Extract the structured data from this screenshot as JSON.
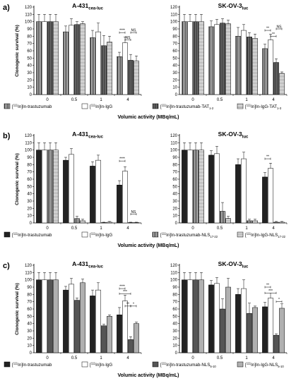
{
  "figure": {
    "panels": [
      {
        "letter": "a)",
        "xlabel": "Volumic activity (MBq/mL)",
        "legend": [
          {
            "pre": "[",
            "sup": "111",
            "mid": "In]In-trastuzumab",
            "sub": "",
            "pattern": "vstripe-dense"
          },
          {
            "pre": "[",
            "sup": "111",
            "mid": "In]In-IgG",
            "sub": "",
            "pattern": "white"
          },
          {
            "pre": "[",
            "sup": "111",
            "mid": "In]In-trastuzumab-TAT",
            "sub": "1-2",
            "pattern": "vstripe"
          },
          {
            "pre": "[",
            "sup": "111",
            "mid": "In]In-IgG-TAT",
            "sub": "1-3",
            "pattern": "hstripe"
          }
        ],
        "charts": [
          {
            "name": "A-431",
            "sub": "cea-luc"
          },
          {
            "name": "SK-OV-3",
            "sub": "luc"
          }
        ]
      },
      {
        "letter": "b)",
        "xlabel": "Volumic activity (MBq/mL)",
        "legend": [
          {
            "pre": "[",
            "sup": "111",
            "mid": "In]In-trastuzumab",
            "sub": "",
            "pattern": "black"
          },
          {
            "pre": "[",
            "sup": "111",
            "mid": "In]In-IgG",
            "sub": "",
            "pattern": "white"
          },
          {
            "pre": "[",
            "sup": "111",
            "mid": "In]In-trastuzumab-NLS",
            "sub": "17-22",
            "pattern": "vstripe-dense"
          },
          {
            "pre": "[",
            "sup": "111",
            "mid": "In]In-IgG-NLS",
            "sub": "17-22",
            "pattern": "hstripe"
          }
        ],
        "charts": [
          {
            "name": "A-431",
            "sub": "cea-luc"
          },
          {
            "name": "SK-OV-3",
            "sub": "luc"
          }
        ]
      },
      {
        "letter": "c)",
        "xlabel": "Volumic activity (MBq/mL)",
        "legend": [
          {
            "pre": "[",
            "sup": "111",
            "mid": "In]In-trastuzumab",
            "sub": "",
            "pattern": "black"
          },
          {
            "pre": "[",
            "sup": "111",
            "mid": "In]In-IgG",
            "sub": "",
            "pattern": "white"
          },
          {
            "pre": "[",
            "sup": "111",
            "mid": "In]In-trastuzumab-NLS",
            "sub": "5-10",
            "pattern": "darkgray"
          },
          {
            "pre": "[",
            "sup": "111",
            "mid": "In]In-IgG-NLS",
            "sub": "5-10",
            "pattern": "lightgray"
          }
        ],
        "charts": [
          {
            "name": "A-431",
            "sub": "cea-luc"
          },
          {
            "name": "SK-OV-3",
            "sub": "luc"
          }
        ]
      }
    ]
  },
  "chart_data": [
    {
      "type": "bar",
      "panel": "a",
      "title": "A-431cea-luc",
      "categories": [
        "0",
        "0.5",
        "1",
        "4"
      ],
      "xlabel": "",
      "ylabel": "Clonogenic survival (%)",
      "ylim": [
        0,
        120
      ],
      "yticks": [
        0,
        10,
        20,
        30,
        40,
        50,
        60,
        70,
        80,
        90,
        100,
        110,
        120
      ],
      "series": [
        {
          "name": "[111In]In-trastuzumab",
          "values": [
            100,
            86,
            78,
            52
          ],
          "errors": [
            10,
            8,
            10,
            6
          ]
        },
        {
          "name": "[111In]In-IgG",
          "values": [
            100,
            95,
            86,
            71
          ],
          "errors": [
            10,
            9,
            12,
            8
          ]
        },
        {
          "name": "[111In]In-trastuzumab-TAT1-2",
          "values": [
            100,
            96,
            67,
            47
          ],
          "errors": [
            10,
            4,
            14,
            8
          ]
        },
        {
          "name": "[111In]In-IgG-TAT1-3",
          "values": [
            100,
            97,
            72,
            46
          ],
          "errors": [
            10,
            3,
            8,
            7
          ]
        }
      ],
      "annotations": [
        {
          "group": 3,
          "from": 0,
          "to": 1,
          "text": "****",
          "y": 85
        },
        {
          "group": 3,
          "from": 1,
          "to": 2,
          "text": "NS",
          "y": 75
        },
        {
          "group": 3,
          "from": 2,
          "to": 3,
          "text": "NS",
          "y": 85
        }
      ]
    },
    {
      "type": "bar",
      "panel": "a",
      "title": "SK-OV-3luc",
      "categories": [
        "0",
        "0.5",
        "1",
        "4"
      ],
      "xlabel": "",
      "ylabel": "",
      "ylim": [
        0,
        120
      ],
      "yticks": [
        0,
        10,
        20,
        30,
        40,
        50,
        60,
        70,
        80,
        90,
        100,
        110,
        120
      ],
      "series": [
        {
          "name": "[111In]In-trastuzumab",
          "values": [
            100,
            93,
            80,
            63
          ],
          "errors": [
            10,
            8,
            12,
            6
          ]
        },
        {
          "name": "[111In]In-IgG",
          "values": [
            100,
            96,
            88,
            75
          ],
          "errors": [
            10,
            7,
            8,
            8
          ]
        },
        {
          "name": "[111In]In-trastuzumab-TAT1-2",
          "values": [
            100,
            98,
            79,
            44
          ],
          "errors": [
            10,
            6,
            6,
            5
          ]
        },
        {
          "name": "[111In]In-IgG-TAT1-3",
          "values": [
            100,
            97,
            77,
            29
          ],
          "errors": [
            10,
            5,
            6,
            2
          ]
        }
      ],
      "annotations": [
        {
          "group": 3,
          "from": 0,
          "to": 1,
          "text": "**",
          "y": 88
        },
        {
          "group": 3,
          "from": 1,
          "to": 2,
          "text": "**",
          "y": 80
        },
        {
          "group": 3,
          "from": 2,
          "to": 3,
          "text": "NS",
          "y": 90
        }
      ]
    },
    {
      "type": "bar",
      "panel": "b",
      "title": "A-431cea-luc",
      "categories": [
        "0",
        "0.5",
        "1",
        "4"
      ],
      "xlabel": "",
      "ylabel": "Clonogenic survival (%)",
      "ylim": [
        0,
        120
      ],
      "yticks": [
        0,
        10,
        20,
        30,
        40,
        50,
        60,
        70,
        80,
        90,
        100,
        110,
        120
      ],
      "series": [
        {
          "name": "[111In]In-trastuzumab",
          "values": [
            100,
            86,
            78,
            52
          ],
          "errors": [
            10,
            4,
            6,
            6
          ]
        },
        {
          "name": "[111In]In-IgG",
          "values": [
            100,
            94,
            86,
            71
          ],
          "errors": [
            10,
            8,
            7,
            6
          ]
        },
        {
          "name": "[111In]In-trastuzumab-NLS17-22",
          "values": [
            100,
            6,
            0.5,
            0.5
          ],
          "errors": [
            10,
            3,
            0.5,
            0.5
          ]
        },
        {
          "name": "[111In]In-IgG-NLS17-22",
          "values": [
            100,
            3,
            1,
            0.5
          ],
          "errors": [
            10,
            2,
            1,
            0.5
          ]
        }
      ],
      "annotations": [
        {
          "group": 3,
          "from": 0,
          "to": 1,
          "text": "****",
          "y": 85
        },
        {
          "group": 3,
          "from": 2,
          "to": 3,
          "text": "NS",
          "y": 12
        }
      ]
    },
    {
      "type": "bar",
      "panel": "b",
      "title": "SK-OV-3luc",
      "categories": [
        "0",
        "0.5",
        "1",
        "4"
      ],
      "xlabel": "",
      "ylabel": "",
      "ylim": [
        0,
        120
      ],
      "yticks": [
        0,
        10,
        20,
        30,
        40,
        50,
        60,
        70,
        80,
        90,
        100,
        110,
        120
      ],
      "series": [
        {
          "name": "[111In]In-trastuzumab",
          "values": [
            100,
            93,
            80,
            63
          ],
          "errors": [
            10,
            6,
            8,
            6
          ]
        },
        {
          "name": "[111In]In-IgG",
          "values": [
            100,
            95,
            88,
            75
          ],
          "errors": [
            10,
            10,
            9,
            7
          ]
        },
        {
          "name": "[111In]In-trastuzumab-NLS17-22",
          "values": [
            100,
            16,
            3,
            1
          ],
          "errors": [
            10,
            12,
            2,
            1
          ]
        },
        {
          "name": "[111In]In-IgG-NLS17-22",
          "values": [
            100,
            6,
            3,
            1
          ],
          "errors": [
            10,
            3,
            2,
            1
          ]
        }
      ],
      "annotations": [
        {
          "group": 3,
          "from": 0,
          "to": 1,
          "text": "**",
          "y": 88
        }
      ]
    },
    {
      "type": "bar",
      "panel": "c",
      "title": "A-431cea-luc",
      "categories": [
        "0",
        "0.5",
        "1",
        "4"
      ],
      "xlabel": "",
      "ylabel": "Clonogenic survival (%)",
      "ylim": [
        0,
        120
      ],
      "yticks": [
        0,
        10,
        20,
        30,
        40,
        50,
        60,
        70,
        80,
        90,
        100,
        110,
        120
      ],
      "series": [
        {
          "name": "[111In]In-trastuzumab",
          "values": [
            100,
            86,
            78,
            52
          ],
          "errors": [
            10,
            5,
            8,
            10
          ]
        },
        {
          "name": "[111In]In-IgG",
          "values": [
            100,
            94,
            86,
            71
          ],
          "errors": [
            10,
            8,
            10,
            8
          ]
        },
        {
          "name": "[111In]In-trastuzumab-NLS5-10",
          "values": [
            100,
            72,
            37,
            18
          ],
          "errors": [
            10,
            3,
            2,
            4
          ]
        },
        {
          "name": "[111In]In-IgG-NLS5-10",
          "values": [
            100,
            96,
            50,
            40
          ],
          "errors": [
            10,
            5,
            2,
            2
          ]
        }
      ],
      "annotations": [
        {
          "group": 3,
          "from": 0,
          "to": 1,
          "text": "****",
          "y": 88
        },
        {
          "group": 3,
          "from": 0,
          "to": 2,
          "text": "***",
          "y": 81
        },
        {
          "group": 3,
          "from": 1,
          "to": 2,
          "text": "**",
          "y": 64
        },
        {
          "group": 3,
          "from": 2,
          "to": 3,
          "text": "*",
          "y": 64
        }
      ]
    },
    {
      "type": "bar",
      "panel": "c",
      "title": "SK-OV-3luc",
      "categories": [
        "0",
        "0.5",
        "1",
        "4"
      ],
      "xlabel": "",
      "ylabel": "",
      "ylim": [
        0,
        120
      ],
      "yticks": [
        0,
        10,
        20,
        30,
        40,
        50,
        60,
        70,
        80,
        90,
        100,
        110,
        120
      ],
      "series": [
        {
          "name": "[111In]In-trastuzumab",
          "values": [
            100,
            93,
            80,
            63
          ],
          "errors": [
            10,
            6,
            8,
            6
          ]
        },
        {
          "name": "[111In]In-IgG",
          "values": [
            100,
            95,
            88,
            75
          ],
          "errors": [
            10,
            8,
            12,
            7
          ]
        },
        {
          "name": "[111In]In-trastuzumab-NLS5-10",
          "values": [
            100,
            60,
            54,
            24
          ],
          "errors": [
            10,
            14,
            14,
            2
          ]
        },
        {
          "name": "[111In]In-IgG-NLS5-10",
          "values": [
            100,
            90,
            62,
            61
          ],
          "errors": [
            10,
            12,
            2,
            6
          ]
        }
      ],
      "annotations": [
        {
          "group": 3,
          "from": 0,
          "to": 1,
          "text": "**",
          "y": 90
        },
        {
          "group": 3,
          "from": 0,
          "to": 2,
          "text": "***",
          "y": 82
        },
        {
          "group": 3,
          "from": 2,
          "to": 3,
          "text": "*",
          "y": 70
        }
      ]
    }
  ]
}
